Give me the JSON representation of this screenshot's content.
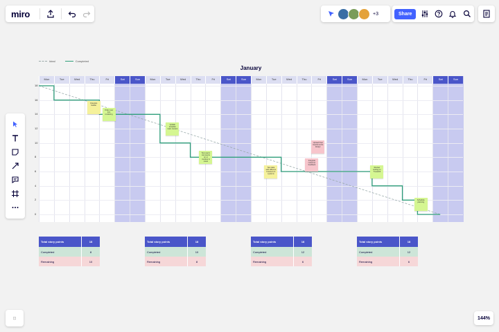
{
  "app": {
    "logo": "miro"
  },
  "collab": {
    "extra_count": "+3",
    "avatar_colors": [
      "#3a6ea5",
      "#7a9c59",
      "#e4a23a"
    ]
  },
  "toolbar": {
    "share_label": "Share"
  },
  "status": {
    "zoom": "144%",
    "minimap": "⊡"
  },
  "legend": {
    "ideal": "Ideal",
    "completed": "Completed"
  },
  "colors": {
    "ideal_line": "#9aa",
    "completed_line": "#2e9e7a",
    "weekend": "#c8caf0",
    "header_weekday": "#dcdef2",
    "header_weekend": "#4a56c9"
  },
  "chart_data": {
    "type": "line",
    "title": "January",
    "xlabel": "",
    "ylabel": "",
    "yticks": [
      0,
      2,
      4,
      6,
      8,
      10,
      12,
      14,
      16,
      18
    ],
    "ylim": [
      0,
      18
    ],
    "days": [
      "Mon",
      "Tue",
      "Wed",
      "Thu",
      "Fri",
      "Sat",
      "Sun",
      "Mon",
      "Tue",
      "Wed",
      "Thu",
      "Fri",
      "Sat",
      "Sun",
      "Mon",
      "Tue",
      "Wed",
      "Thu",
      "Fri",
      "Sat",
      "Sun",
      "Mon",
      "Tue",
      "Wed",
      "Thu",
      "Fri",
      "Sat",
      "Sun"
    ],
    "weekend_indices": [
      5,
      6,
      12,
      13,
      19,
      20,
      26,
      27
    ],
    "series": [
      {
        "name": "Ideal",
        "style": "dashed",
        "points": [
          [
            0,
            18
          ],
          [
            26.5,
            0
          ]
        ]
      },
      {
        "name": "Completed",
        "style": "solid",
        "points": [
          [
            0,
            18
          ],
          [
            1,
            18
          ],
          [
            1,
            16
          ],
          [
            4,
            16
          ],
          [
            4,
            14
          ],
          [
            8,
            14
          ],
          [
            8,
            10
          ],
          [
            10,
            10
          ],
          [
            10,
            8
          ],
          [
            16,
            8
          ],
          [
            16,
            6
          ],
          [
            22,
            6
          ],
          [
            22,
            4
          ],
          [
            24,
            4
          ],
          [
            24,
            2
          ],
          [
            25,
            2
          ],
          [
            25,
            0
          ],
          [
            26.5,
            0
          ]
        ]
      }
    ],
    "stickies": [
      {
        "text": "Integrate header",
        "color": "#f5f19b",
        "day": 3.6,
        "y": 15
      },
      {
        "text": "Order new font rendering",
        "color": "#d5f692",
        "day": 4.6,
        "y": 14
      },
      {
        "text": "Update template main content",
        "color": "#d5f692",
        "day": 8.8,
        "y": 12
      },
      {
        "text": "Test user's comments on ui mockup & notes",
        "color": "#d5f692",
        "day": 11.0,
        "y": 8
      },
      {
        "text": "Test data with different browsers & systems",
        "color": "#f5f19b",
        "day": 15.3,
        "y": 6
      },
      {
        "text": "Upload final requirements design",
        "color": "#f7c5cc",
        "day": 18.4,
        "y": 9.5
      },
      {
        "text": "Integrate customer feedback",
        "color": "#f7c5cc",
        "day": 18.0,
        "y": 7
      },
      {
        "text": "Review testing on Trustshift",
        "color": "#d5f692",
        "day": 22.3,
        "y": 6
      },
      {
        "text": "Schedule planning",
        "color": "#d5f692",
        "day": 25.2,
        "y": 1.5
      }
    ]
  },
  "tables": [
    {
      "header": "Total story points",
      "total": "18",
      "completed_label": "Completed",
      "completed": "8",
      "remaining_label": "Remaining",
      "remaining": "10"
    },
    {
      "header": "Total story points",
      "total": "18",
      "completed_label": "Completed",
      "completed": "10",
      "remaining_label": "Remaining",
      "remaining": "8"
    },
    {
      "header": "Total story points",
      "total": "18",
      "completed_label": "Completed",
      "completed": "12",
      "remaining_label": "Remaining",
      "remaining": "6"
    },
    {
      "header": "Total story points",
      "total": "18",
      "completed_label": "Completed",
      "completed": "12",
      "remaining_label": "Remaining",
      "remaining": "6"
    }
  ]
}
